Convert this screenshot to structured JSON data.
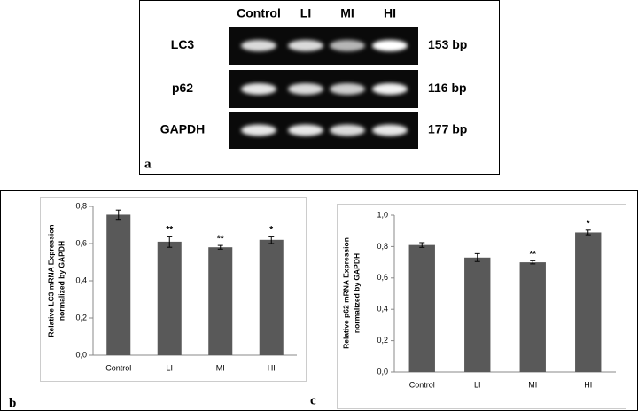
{
  "gel": {
    "lanes": [
      "Control",
      "LI",
      "MI",
      "HI"
    ],
    "rows": [
      {
        "label": "LC3",
        "size": "153 bp"
      },
      {
        "label": "p62",
        "size": "116 bp"
      },
      {
        "label": "GAPDH",
        "size": "177 bp"
      }
    ],
    "panel_label": "a"
  },
  "chart_data": [
    {
      "type": "bar",
      "panel_label": "b",
      "ylabel": [
        "Relative LC3 mRNA Expression",
        "normalized by GAPDH"
      ],
      "categories": [
        "Control",
        "LI",
        "MI",
        "HI"
      ],
      "values": [
        0.755,
        0.61,
        0.58,
        0.62
      ],
      "errors": [
        0.025,
        0.03,
        0.01,
        0.02
      ],
      "annotations": [
        null,
        "**",
        "**",
        "*"
      ],
      "color": "#595959",
      "ylim": [
        0,
        0.8
      ],
      "yticks": [
        {
          "value": 0,
          "label": "0,0"
        },
        {
          "value": 0.2,
          "label": "0,2"
        },
        {
          "value": 0.4,
          "label": "0,4"
        },
        {
          "value": 0.6,
          "label": "0,6"
        },
        {
          "value": 0.8,
          "label": "0,8"
        }
      ],
      "grid": false
    },
    {
      "type": "bar",
      "panel_label": "c",
      "ylabel": [
        "Relative p62 mRNA Expression",
        "normalized by GAPDH"
      ],
      "categories": [
        "Control",
        "LI",
        "MI",
        "HI"
      ],
      "values": [
        0.81,
        0.73,
        0.7,
        0.89
      ],
      "errors": [
        0.015,
        0.025,
        0.01,
        0.015
      ],
      "annotations": [
        null,
        null,
        "**",
        "*"
      ],
      "color": "#595959",
      "ylim": [
        0,
        1
      ],
      "yticks": [
        {
          "value": 0,
          "label": "0,0"
        },
        {
          "value": 0.2,
          "label": "0,2"
        },
        {
          "value": 0.4,
          "label": "0,4"
        },
        {
          "value": 0.6,
          "label": "0,6"
        },
        {
          "value": 0.8,
          "label": "0,8"
        },
        {
          "value": 1,
          "label": "1,0"
        }
      ],
      "grid": false
    }
  ]
}
